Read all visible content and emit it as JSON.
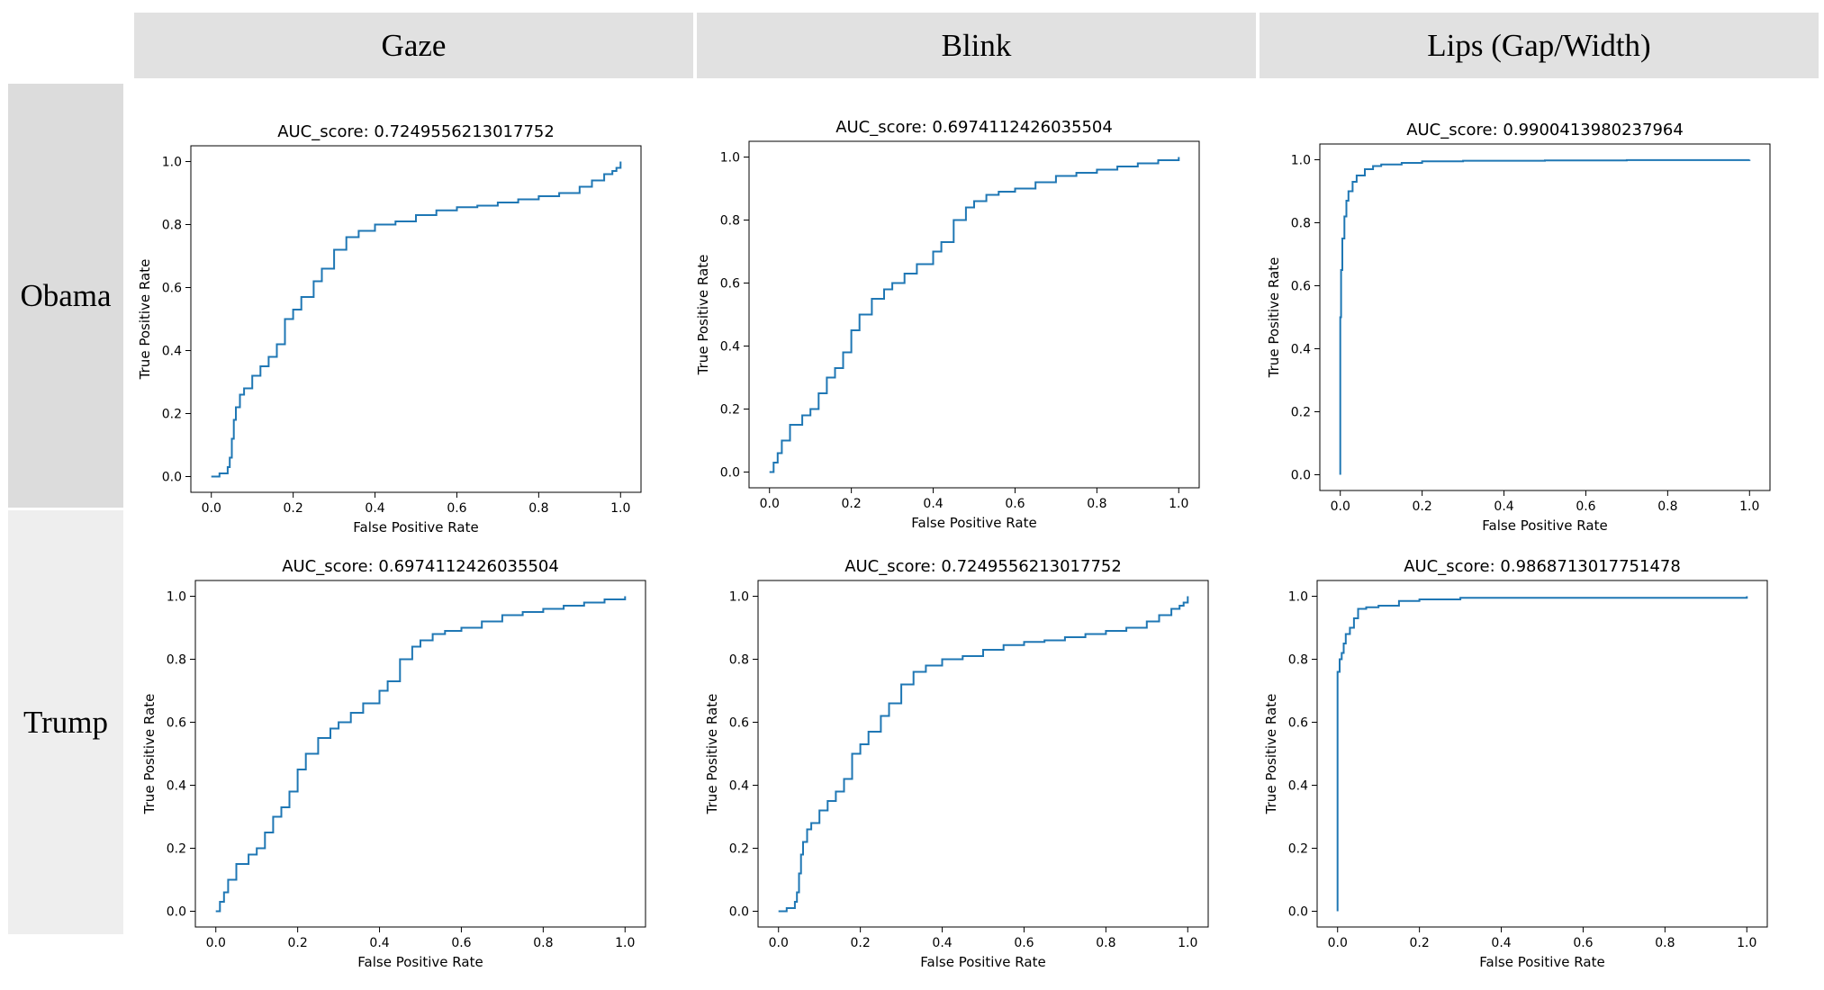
{
  "columns": [
    "Gaze",
    "Blink",
    "Lips (Gap/Width)"
  ],
  "rows": [
    "Obama",
    "Trump"
  ],
  "chart_data": [
    {
      "type": "line",
      "row": "Obama",
      "column": "Gaze",
      "title": "AUC_score: 0.7249556213017752",
      "xlabel": "False Positive Rate",
      "ylabel": "True Positive Rate",
      "xlim": [
        0,
        1
      ],
      "ylim": [
        0,
        1
      ],
      "grid": false,
      "xticks": [
        "0.0",
        "0.2",
        "0.4",
        "0.6",
        "0.8",
        "1.0"
      ],
      "yticks": [
        "0.0",
        "0.2",
        "0.4",
        "0.6",
        "0.8",
        "1.0"
      ],
      "color": "#1f77b4",
      "series": [
        {
          "x": [
            0,
            0.02,
            0.04,
            0.045,
            0.05,
            0.055,
            0.06,
            0.07,
            0.08,
            0.1,
            0.12,
            0.14,
            0.16,
            0.18,
            0.2,
            0.22,
            0.25,
            0.27,
            0.3,
            0.33,
            0.36,
            0.4,
            0.45,
            0.5,
            0.55,
            0.6,
            0.65,
            0.7,
            0.75,
            0.8,
            0.85,
            0.9,
            0.93,
            0.96,
            0.98,
            0.99,
            1.0
          ],
          "y": [
            0,
            0.01,
            0.03,
            0.06,
            0.12,
            0.18,
            0.22,
            0.26,
            0.28,
            0.32,
            0.35,
            0.38,
            0.42,
            0.5,
            0.53,
            0.57,
            0.62,
            0.66,
            0.72,
            0.76,
            0.78,
            0.8,
            0.81,
            0.83,
            0.845,
            0.855,
            0.86,
            0.87,
            0.88,
            0.89,
            0.9,
            0.92,
            0.94,
            0.96,
            0.97,
            0.98,
            1.0
          ]
        }
      ]
    },
    {
      "type": "line",
      "row": "Obama",
      "column": "Blink",
      "title": "AUC_score: 0.6974112426035504",
      "xlabel": "False Positive Rate",
      "ylabel": "True Positive Rate",
      "xlim": [
        0,
        1
      ],
      "ylim": [
        0,
        1
      ],
      "grid": false,
      "xticks": [
        "0.0",
        "0.2",
        "0.4",
        "0.6",
        "0.8",
        "1.0"
      ],
      "yticks": [
        "0.0",
        "0.2",
        "0.4",
        "0.6",
        "0.8",
        "1.0"
      ],
      "color": "#1f77b4",
      "series": [
        {
          "x": [
            0,
            0.01,
            0.02,
            0.03,
            0.05,
            0.08,
            0.1,
            0.12,
            0.14,
            0.16,
            0.18,
            0.2,
            0.22,
            0.25,
            0.28,
            0.3,
            0.33,
            0.36,
            0.4,
            0.42,
            0.45,
            0.48,
            0.5,
            0.53,
            0.56,
            0.6,
            0.65,
            0.7,
            0.75,
            0.8,
            0.85,
            0.9,
            0.95,
            1.0
          ],
          "y": [
            0,
            0.03,
            0.06,
            0.1,
            0.15,
            0.18,
            0.2,
            0.25,
            0.3,
            0.33,
            0.38,
            0.45,
            0.5,
            0.55,
            0.58,
            0.6,
            0.63,
            0.66,
            0.7,
            0.73,
            0.8,
            0.84,
            0.86,
            0.88,
            0.89,
            0.9,
            0.92,
            0.94,
            0.95,
            0.96,
            0.97,
            0.98,
            0.99,
            1.0
          ]
        }
      ]
    },
    {
      "type": "line",
      "row": "Obama",
      "column": "Lips (Gap/Width)",
      "title": "AUC_score: 0.9900413980237964",
      "xlabel": "False Positive Rate",
      "ylabel": "True Positive Rate",
      "xlim": [
        0,
        1
      ],
      "ylim": [
        0,
        1
      ],
      "grid": false,
      "xticks": [
        "0.0",
        "0.2",
        "0.4",
        "0.6",
        "0.8",
        "1.0"
      ],
      "yticks": [
        "0.0",
        "0.2",
        "0.4",
        "0.6",
        "0.8",
        "1.0"
      ],
      "color": "#1f77b4",
      "series": [
        {
          "x": [
            0,
            0,
            0.002,
            0.005,
            0.01,
            0.015,
            0.02,
            0.03,
            0.04,
            0.06,
            0.08,
            0.1,
            0.15,
            0.2,
            0.3,
            0.5,
            0.7,
            1.0
          ],
          "y": [
            0,
            0.5,
            0.65,
            0.75,
            0.82,
            0.87,
            0.9,
            0.93,
            0.95,
            0.97,
            0.98,
            0.985,
            0.99,
            0.995,
            0.997,
            0.998,
            0.999,
            1.0
          ]
        }
      ]
    },
    {
      "type": "line",
      "row": "Trump",
      "column": "Gaze",
      "title": "AUC_score: 0.6974112426035504",
      "xlabel": "False Positive Rate",
      "ylabel": "True Positive Rate",
      "xlim": [
        0,
        1
      ],
      "ylim": [
        0,
        1
      ],
      "grid": false,
      "xticks": [
        "0.0",
        "0.2",
        "0.4",
        "0.6",
        "0.8",
        "1.0"
      ],
      "yticks": [
        "0.0",
        "0.2",
        "0.4",
        "0.6",
        "0.8",
        "1.0"
      ],
      "color": "#1f77b4",
      "series": [
        {
          "x": [
            0,
            0.01,
            0.02,
            0.03,
            0.05,
            0.08,
            0.1,
            0.12,
            0.14,
            0.16,
            0.18,
            0.2,
            0.22,
            0.25,
            0.28,
            0.3,
            0.33,
            0.36,
            0.4,
            0.42,
            0.45,
            0.48,
            0.5,
            0.53,
            0.56,
            0.6,
            0.65,
            0.7,
            0.75,
            0.8,
            0.85,
            0.9,
            0.95,
            1.0
          ],
          "y": [
            0,
            0.03,
            0.06,
            0.1,
            0.15,
            0.18,
            0.2,
            0.25,
            0.3,
            0.33,
            0.38,
            0.45,
            0.5,
            0.55,
            0.58,
            0.6,
            0.63,
            0.66,
            0.7,
            0.73,
            0.8,
            0.84,
            0.86,
            0.88,
            0.89,
            0.9,
            0.92,
            0.94,
            0.95,
            0.96,
            0.97,
            0.98,
            0.99,
            1.0
          ]
        }
      ]
    },
    {
      "type": "line",
      "row": "Trump",
      "column": "Blink",
      "title": "AUC_score: 0.7249556213017752",
      "xlabel": "False Positive Rate",
      "ylabel": "True Positive Rate",
      "xlim": [
        0,
        1
      ],
      "ylim": [
        0,
        1
      ],
      "grid": false,
      "xticks": [
        "0.0",
        "0.2",
        "0.4",
        "0.6",
        "0.8",
        "1.0"
      ],
      "yticks": [
        "0.0",
        "0.2",
        "0.4",
        "0.6",
        "0.8",
        "1.0"
      ],
      "color": "#1f77b4",
      "series": [
        {
          "x": [
            0,
            0.02,
            0.04,
            0.045,
            0.05,
            0.055,
            0.06,
            0.07,
            0.08,
            0.1,
            0.12,
            0.14,
            0.16,
            0.18,
            0.2,
            0.22,
            0.25,
            0.27,
            0.3,
            0.33,
            0.36,
            0.4,
            0.45,
            0.5,
            0.55,
            0.6,
            0.65,
            0.7,
            0.75,
            0.8,
            0.85,
            0.9,
            0.93,
            0.96,
            0.98,
            0.99,
            1.0
          ],
          "y": [
            0,
            0.01,
            0.03,
            0.06,
            0.12,
            0.18,
            0.22,
            0.26,
            0.28,
            0.32,
            0.35,
            0.38,
            0.42,
            0.5,
            0.53,
            0.57,
            0.62,
            0.66,
            0.72,
            0.76,
            0.78,
            0.8,
            0.81,
            0.83,
            0.845,
            0.855,
            0.86,
            0.87,
            0.88,
            0.89,
            0.9,
            0.92,
            0.94,
            0.96,
            0.97,
            0.98,
            1.0
          ]
        }
      ]
    },
    {
      "type": "line",
      "row": "Trump",
      "column": "Lips (Gap/Width)",
      "title": "AUC_score: 0.9868713017751478",
      "xlabel": "False Positive Rate",
      "ylabel": "True Positive Rate",
      "xlim": [
        0,
        1
      ],
      "ylim": [
        0,
        1
      ],
      "grid": false,
      "xticks": [
        "0.0",
        "0.2",
        "0.4",
        "0.6",
        "0.8",
        "1.0"
      ],
      "yticks": [
        "0.0",
        "0.2",
        "0.4",
        "0.6",
        "0.8",
        "1.0"
      ],
      "color": "#1f77b4",
      "series": [
        {
          "x": [
            0,
            0,
            0.005,
            0.01,
            0.015,
            0.02,
            0.03,
            0.04,
            0.05,
            0.07,
            0.1,
            0.15,
            0.2,
            0.3,
            0.5,
            0.8,
            1.0
          ],
          "y": [
            0,
            0.76,
            0.8,
            0.82,
            0.85,
            0.88,
            0.9,
            0.93,
            0.96,
            0.965,
            0.97,
            0.985,
            0.99,
            0.995,
            0.995,
            0.995,
            1.0
          ]
        }
      ]
    }
  ]
}
